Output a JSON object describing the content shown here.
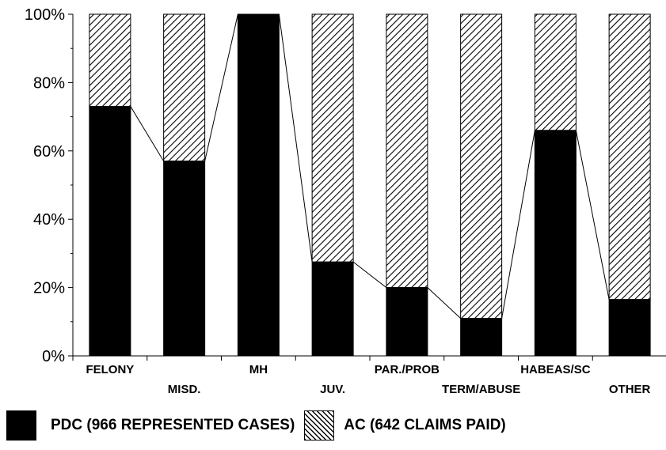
{
  "chart_data": {
    "type": "bar",
    "stacked": true,
    "categories": [
      "FELONY",
      "MISD.",
      "MH",
      "JUV.",
      "PAR./PROB",
      "TERM/ABUSE",
      "HABEAS/SC",
      "OTHER"
    ],
    "series": [
      {
        "name": "PDC (966 REPRESENTED CASES)",
        "values": [
          73,
          57,
          100,
          27.5,
          20,
          11,
          66,
          16.5
        ],
        "color": "#000000",
        "pattern": "solid"
      },
      {
        "name": "AC (642 CLAIMS PAID)",
        "values": [
          27,
          43,
          0,
          72.5,
          80,
          89,
          34,
          83.5
        ],
        "color": "#000000",
        "pattern": "diagonal-hatch"
      }
    ],
    "yticks": [
      "0%",
      "20%",
      "40%",
      "60%",
      "80%",
      "100%"
    ],
    "ylim": [
      0,
      100
    ],
    "connector_line": true,
    "grid": false,
    "legend_position": "bottom"
  }
}
